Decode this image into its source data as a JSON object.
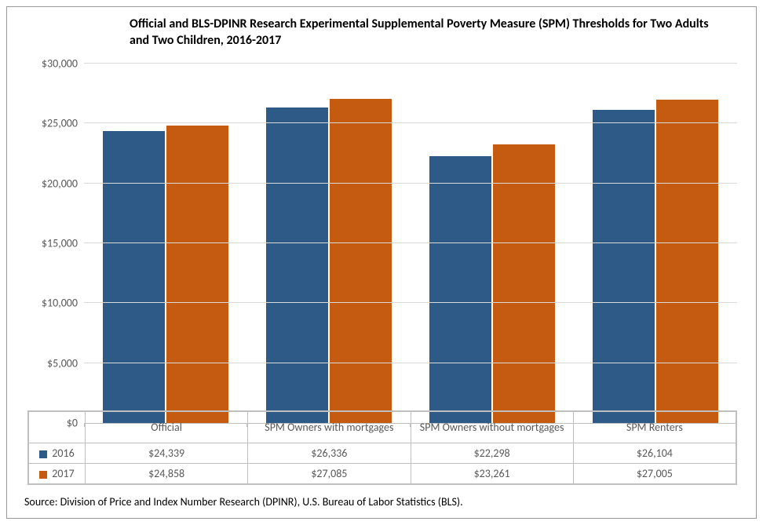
{
  "chart": {
    "type": "bar",
    "title": "Official and BLS-DPINR Research Experimental Supplemental Poverty Measure (SPM) Thresholds for Two Adults and Two Children, 2016-2017",
    "title_fontsize": 16,
    "title_fontweight": "bold",
    "title_color": "#000000",
    "background_color": "#ffffff",
    "border_color": "#999999",
    "grid_color": "#d9d9d9",
    "axis_color": "#bfbfbf",
    "tick_label_color": "#595959",
    "tick_fontsize": 14,
    "ylim": [
      0,
      30000
    ],
    "ytick_step": 5000,
    "y_prefix": "$",
    "categories": [
      "Official",
      "SPM Owners with mortgages",
      "SPM Owners without mortgages",
      "SPM Renters"
    ],
    "series": [
      {
        "name": "2016",
        "color": "#2e5a87",
        "values": [
          24339,
          26336,
          22298,
          26104
        ]
      },
      {
        "name": "2017",
        "color": "#c55a11",
        "values": [
          24858,
          27085,
          23261,
          27005
        ]
      }
    ],
    "bar_width_pct": 38,
    "group_gap_pct": 2,
    "source": "Source: Division of Price and Index Number Research (DPINR), U.S. Bureau of Labor Statistics (BLS).",
    "source_fontsize": 14,
    "source_color": "#000000"
  }
}
